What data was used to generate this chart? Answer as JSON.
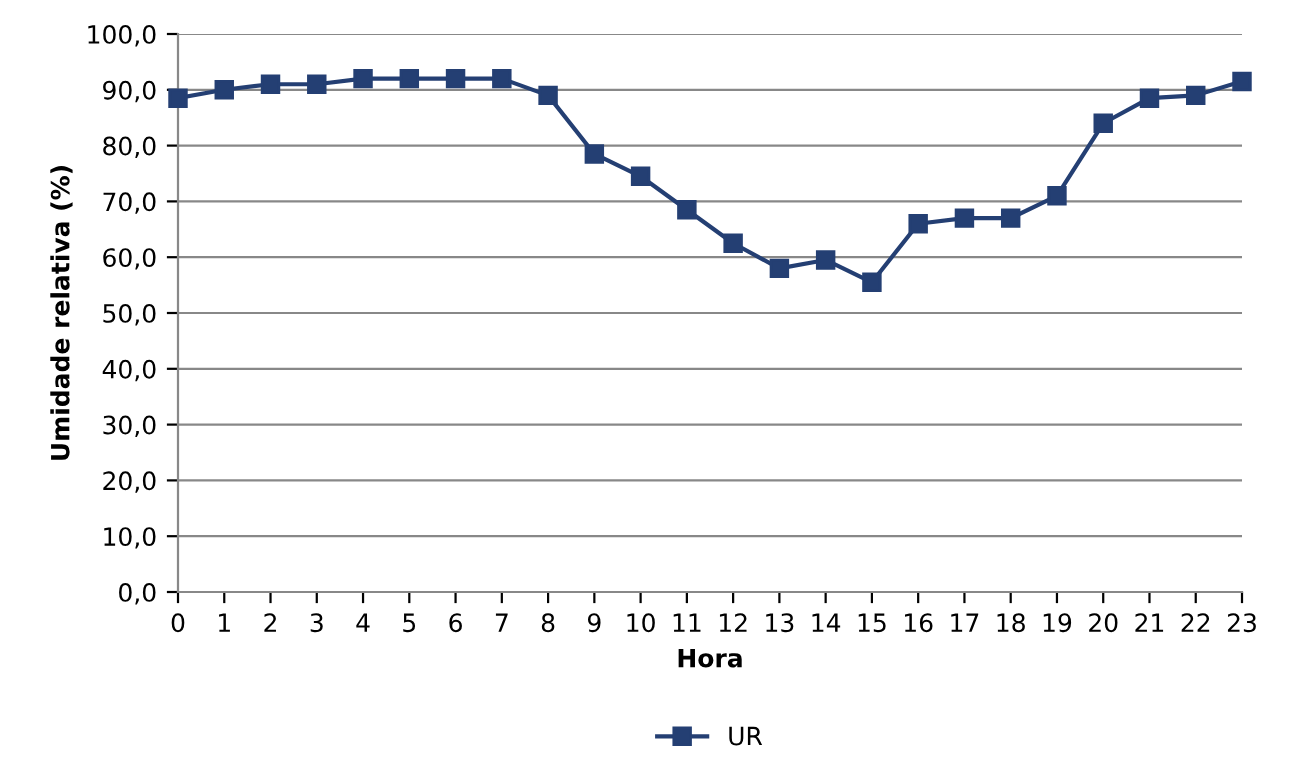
{
  "chart_data": {
    "type": "line",
    "xlabel": "Hora",
    "ylabel": "Umidade relativa (%)",
    "x": [
      0,
      1,
      2,
      3,
      4,
      5,
      6,
      7,
      8,
      9,
      10,
      11,
      12,
      13,
      14,
      15,
      16,
      17,
      18,
      19,
      20,
      21,
      22,
      23
    ],
    "series": [
      {
        "name": "UR",
        "color": "#243f73",
        "values": [
          88.5,
          90,
          91,
          91,
          92,
          92,
          92,
          92,
          89,
          78.5,
          74.5,
          68.5,
          62.5,
          58,
          59.5,
          55.5,
          66,
          67,
          67,
          71,
          84,
          88.5,
          89,
          91.5
        ]
      }
    ],
    "xlim": [
      0,
      23
    ],
    "xticks": [
      0,
      1,
      2,
      3,
      4,
      5,
      6,
      7,
      8,
      9,
      10,
      11,
      12,
      13,
      14,
      15,
      16,
      17,
      18,
      19,
      20,
      21,
      22,
      23
    ],
    "ylim": [
      0,
      100
    ],
    "yticks": [
      {
        "value": 0,
        "label": "0,0"
      },
      {
        "value": 10,
        "label": "10,0"
      },
      {
        "value": 20,
        "label": "20,0"
      },
      {
        "value": 30,
        "label": "30,0"
      },
      {
        "value": 40,
        "label": "40,0"
      },
      {
        "value": 50,
        "label": "50,0"
      },
      {
        "value": 60,
        "label": "60,0"
      },
      {
        "value": 70,
        "label": "70,0"
      },
      {
        "value": 80,
        "label": "80,0"
      },
      {
        "value": 90,
        "label": "90,0"
      },
      {
        "value": 100,
        "label": "100,0"
      }
    ],
    "grid": "y",
    "legend": "bottom",
    "marker": "square",
    "line_style": "solid"
  }
}
